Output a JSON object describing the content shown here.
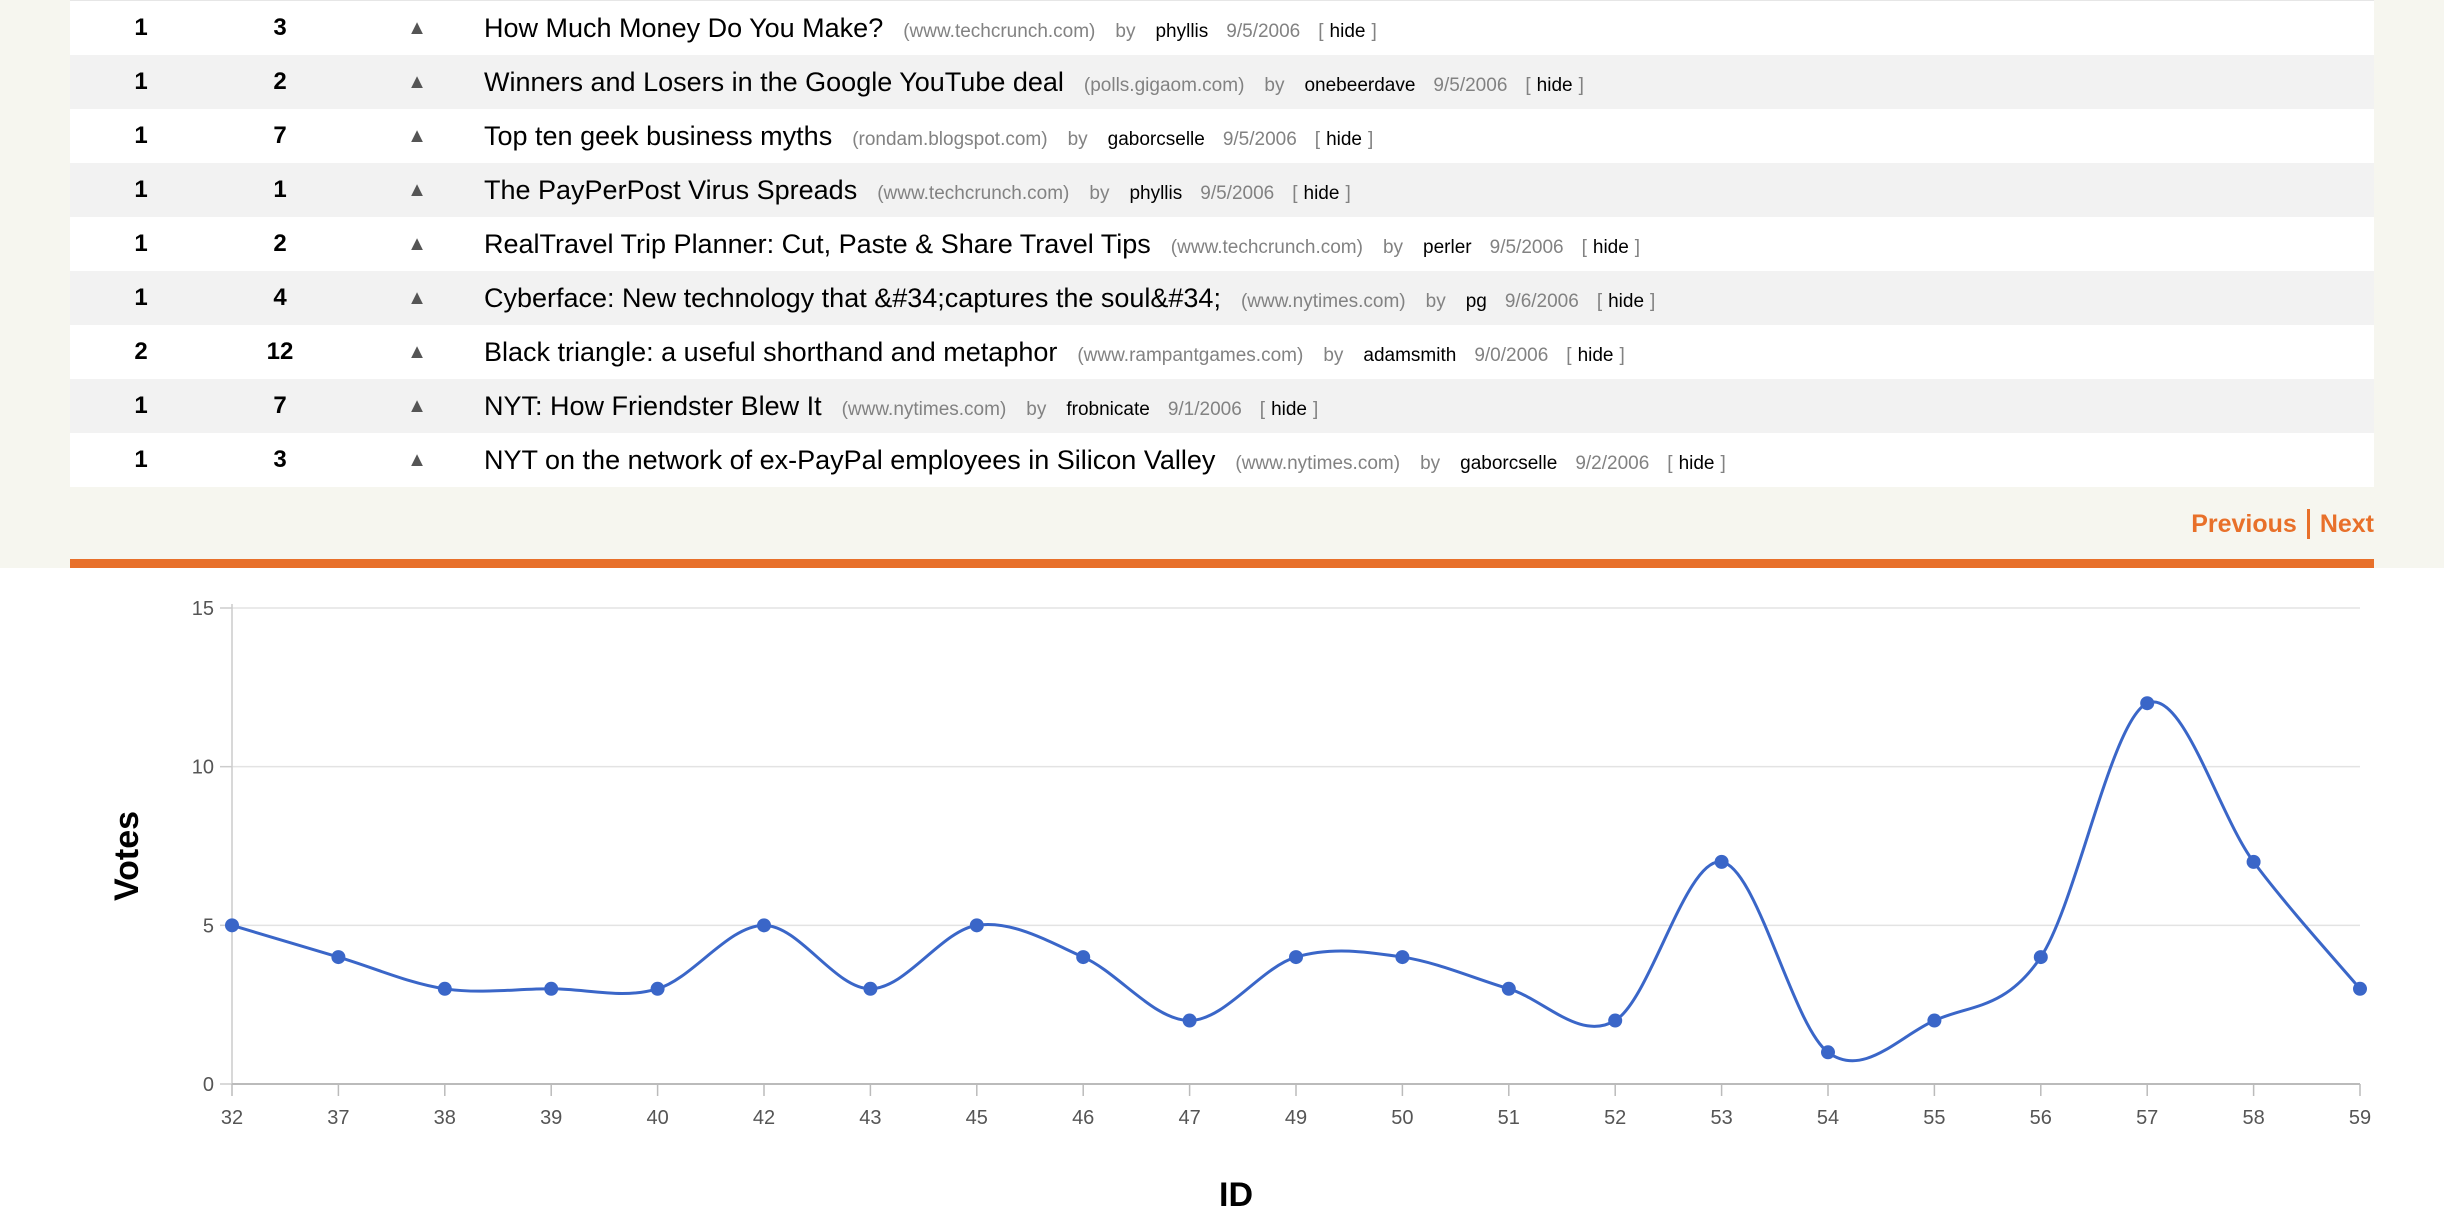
{
  "stories": [
    {
      "rank": "1",
      "votes": "3",
      "title": "How Much Money Do You Make?",
      "site": "(www.techcrunch.com)",
      "user": "phyllis",
      "date": "9/5/2006"
    },
    {
      "rank": "1",
      "votes": "2",
      "title": "Winners and Losers in the Google YouTube deal",
      "site": "(polls.gigaom.com)",
      "user": "onebeerdave",
      "date": "9/5/2006"
    },
    {
      "rank": "1",
      "votes": "7",
      "title": "Top ten geek business myths",
      "site": "(rondam.blogspot.com)",
      "user": "gaborcselle",
      "date": "9/5/2006"
    },
    {
      "rank": "1",
      "votes": "1",
      "title": "The PayPerPost Virus Spreads",
      "site": "(www.techcrunch.com)",
      "user": "phyllis",
      "date": "9/5/2006"
    },
    {
      "rank": "1",
      "votes": "2",
      "title": "RealTravel Trip Planner: Cut, Paste & Share Travel Tips",
      "site": "(www.techcrunch.com)",
      "user": "perler",
      "date": "9/5/2006"
    },
    {
      "rank": "1",
      "votes": "4",
      "title": "Cyberface: New technology that &#34;captures the soul&#34;",
      "site": "(www.nytimes.com)",
      "user": "pg",
      "date": "9/6/2006"
    },
    {
      "rank": "2",
      "votes": "12",
      "title": "Black triangle: a useful shorthand and metaphor",
      "site": "(www.rampantgames.com)",
      "user": "adamsmith",
      "date": "9/0/2006"
    },
    {
      "rank": "1",
      "votes": "7",
      "title": "NYT: How Friendster Blew It",
      "site": "(www.nytimes.com)",
      "user": "frobnicate",
      "date": "9/1/2006"
    },
    {
      "rank": "1",
      "votes": "3",
      "title": "NYT on the network of ex-PayPal employees in Silicon Valley",
      "site": "(www.nytimes.com)",
      "user": "gaborcselle",
      "date": "9/2/2006"
    }
  ],
  "labels": {
    "upvote_glyph": "▲",
    "by": "by",
    "hide": "hide",
    "bracket_open": "[",
    "bracket_close": "]"
  },
  "pager": {
    "previous": "Previous",
    "next": "Next"
  },
  "colors": {
    "accent": "#e8702a",
    "line": "#3a66c8"
  },
  "chart_data": {
    "type": "line",
    "categories": [
      "32",
      "37",
      "38",
      "39",
      "40",
      "42",
      "43",
      "45",
      "46",
      "47",
      "49",
      "50",
      "51",
      "52",
      "53",
      "54",
      "55",
      "56",
      "57",
      "58",
      "59"
    ],
    "series": [
      {
        "values": [
          5,
          4,
          3,
          3,
          3,
          5,
          3,
          5,
          4,
          2,
          4,
          4,
          3,
          2,
          7,
          1,
          2,
          4,
          12,
          7,
          3
        ]
      }
    ],
    "xlabel": "ID",
    "ylabel": "Votes",
    "ylim": [
      0,
      15
    ],
    "yticks": [
      "0",
      "5",
      "10",
      "15"
    ],
    "grid": true,
    "smooth": true
  }
}
